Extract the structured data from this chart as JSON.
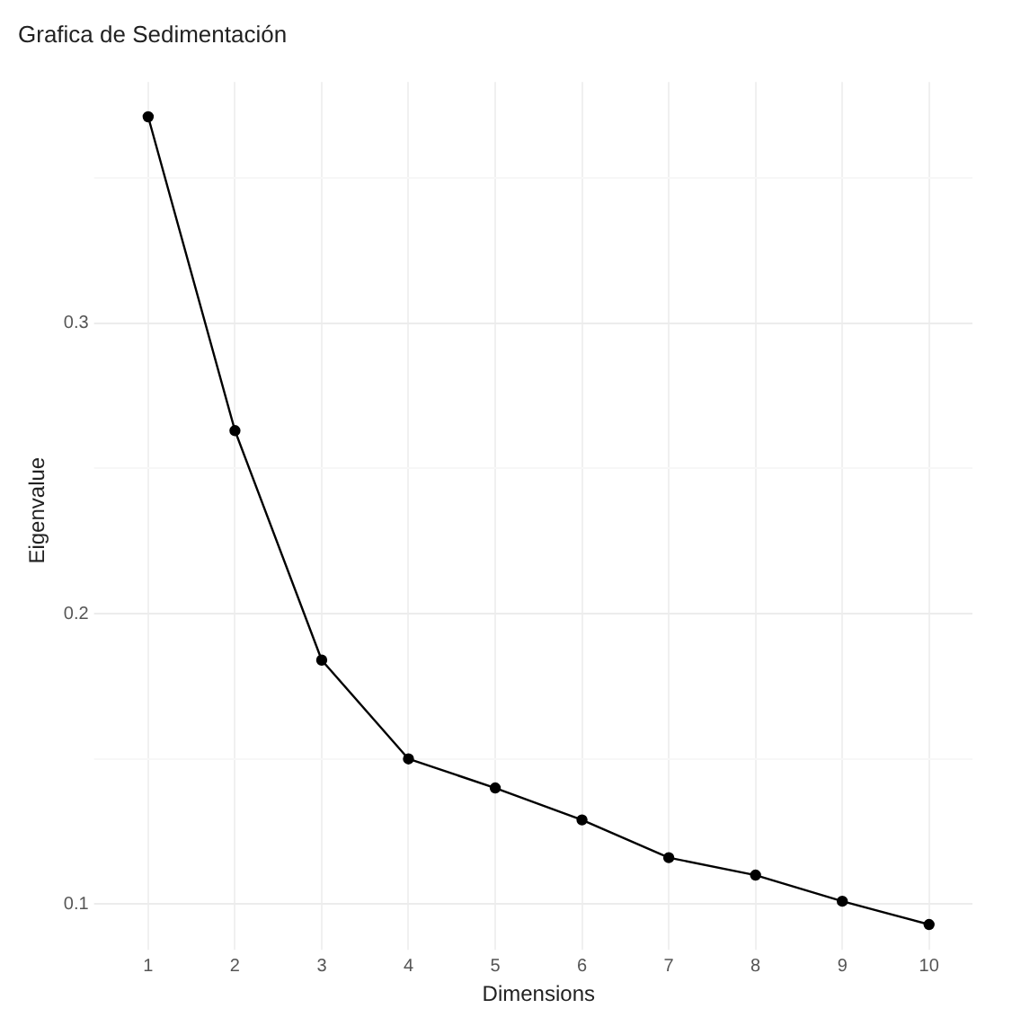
{
  "chart_data": {
    "type": "line",
    "title": "Grafica de Sedimentación",
    "xlabel": "Dimensions",
    "ylabel": "Eigenvalue",
    "categories": [
      "1",
      "2",
      "3",
      "4",
      "5",
      "6",
      "7",
      "8",
      "9",
      "10"
    ],
    "series": [
      {
        "color": "#000000",
        "values": [
          0.371,
          0.263,
          0.184,
          0.15,
          0.14,
          0.129,
          0.116,
          0.11,
          0.101,
          0.093
        ]
      }
    ],
    "ylim": [
      0.088,
      0.383
    ],
    "yticks": [
      0.1,
      {
        "value": 0.15,
        "label": null
      },
      0.2,
      {
        "value": 0.25,
        "label": null
      },
      0.3,
      {
        "value": 0.35,
        "label": null
      }
    ],
    "grid": true,
    "marker": "circle",
    "line_style": "solid",
    "legend": false
  }
}
